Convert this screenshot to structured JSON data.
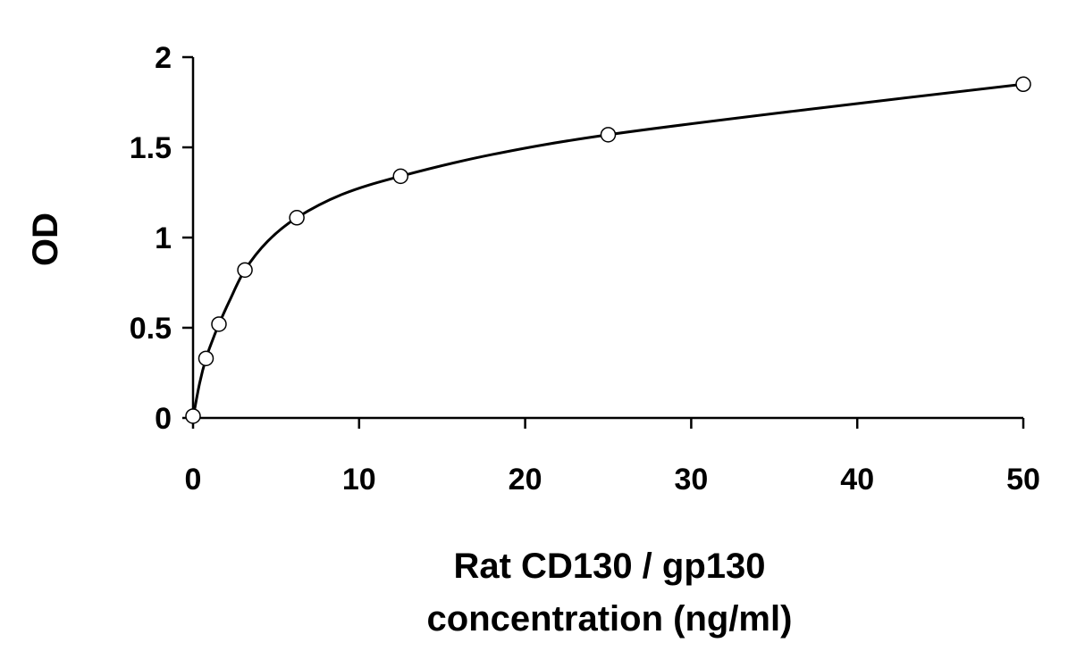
{
  "chart_data": {
    "type": "scatter",
    "title": "",
    "xlabel": [
      "Rat CD130 / gp130",
      "concentration (ng/ml)"
    ],
    "ylabel": "OD",
    "xlim": [
      0,
      50
    ],
    "ylim": [
      0,
      2
    ],
    "x_ticks": [
      0,
      10,
      20,
      30,
      40,
      50
    ],
    "y_ticks": [
      0,
      0.5,
      1,
      1.5,
      2
    ],
    "x_tick_labels": [
      "0",
      "10",
      "20",
      "30",
      "40",
      "50"
    ],
    "y_tick_labels": [
      "0",
      "0.5",
      "1",
      "1.5",
      "2"
    ],
    "grid": false,
    "legend": "none",
    "series": [
      {
        "marker": "open-circle",
        "x": [
          0,
          0.78,
          1.56,
          3.125,
          6.25,
          12.5,
          25,
          50
        ],
        "y": [
          0.01,
          0.33,
          0.52,
          0.82,
          1.11,
          1.34,
          1.57,
          1.85
        ]
      }
    ],
    "fit_curve": {
      "style": "solid",
      "color": "#000000",
      "x": [
        0,
        0.39,
        0.78,
        1.17,
        1.56,
        2.2,
        3.125,
        4.5,
        6.25,
        9,
        12.5,
        18,
        25,
        37,
        50
      ],
      "y": [
        0,
        0.19,
        0.33,
        0.43,
        0.52,
        0.65,
        0.82,
        0.98,
        1.11,
        1.24,
        1.34,
        1.46,
        1.57,
        1.71,
        1.85
      ]
    }
  }
}
